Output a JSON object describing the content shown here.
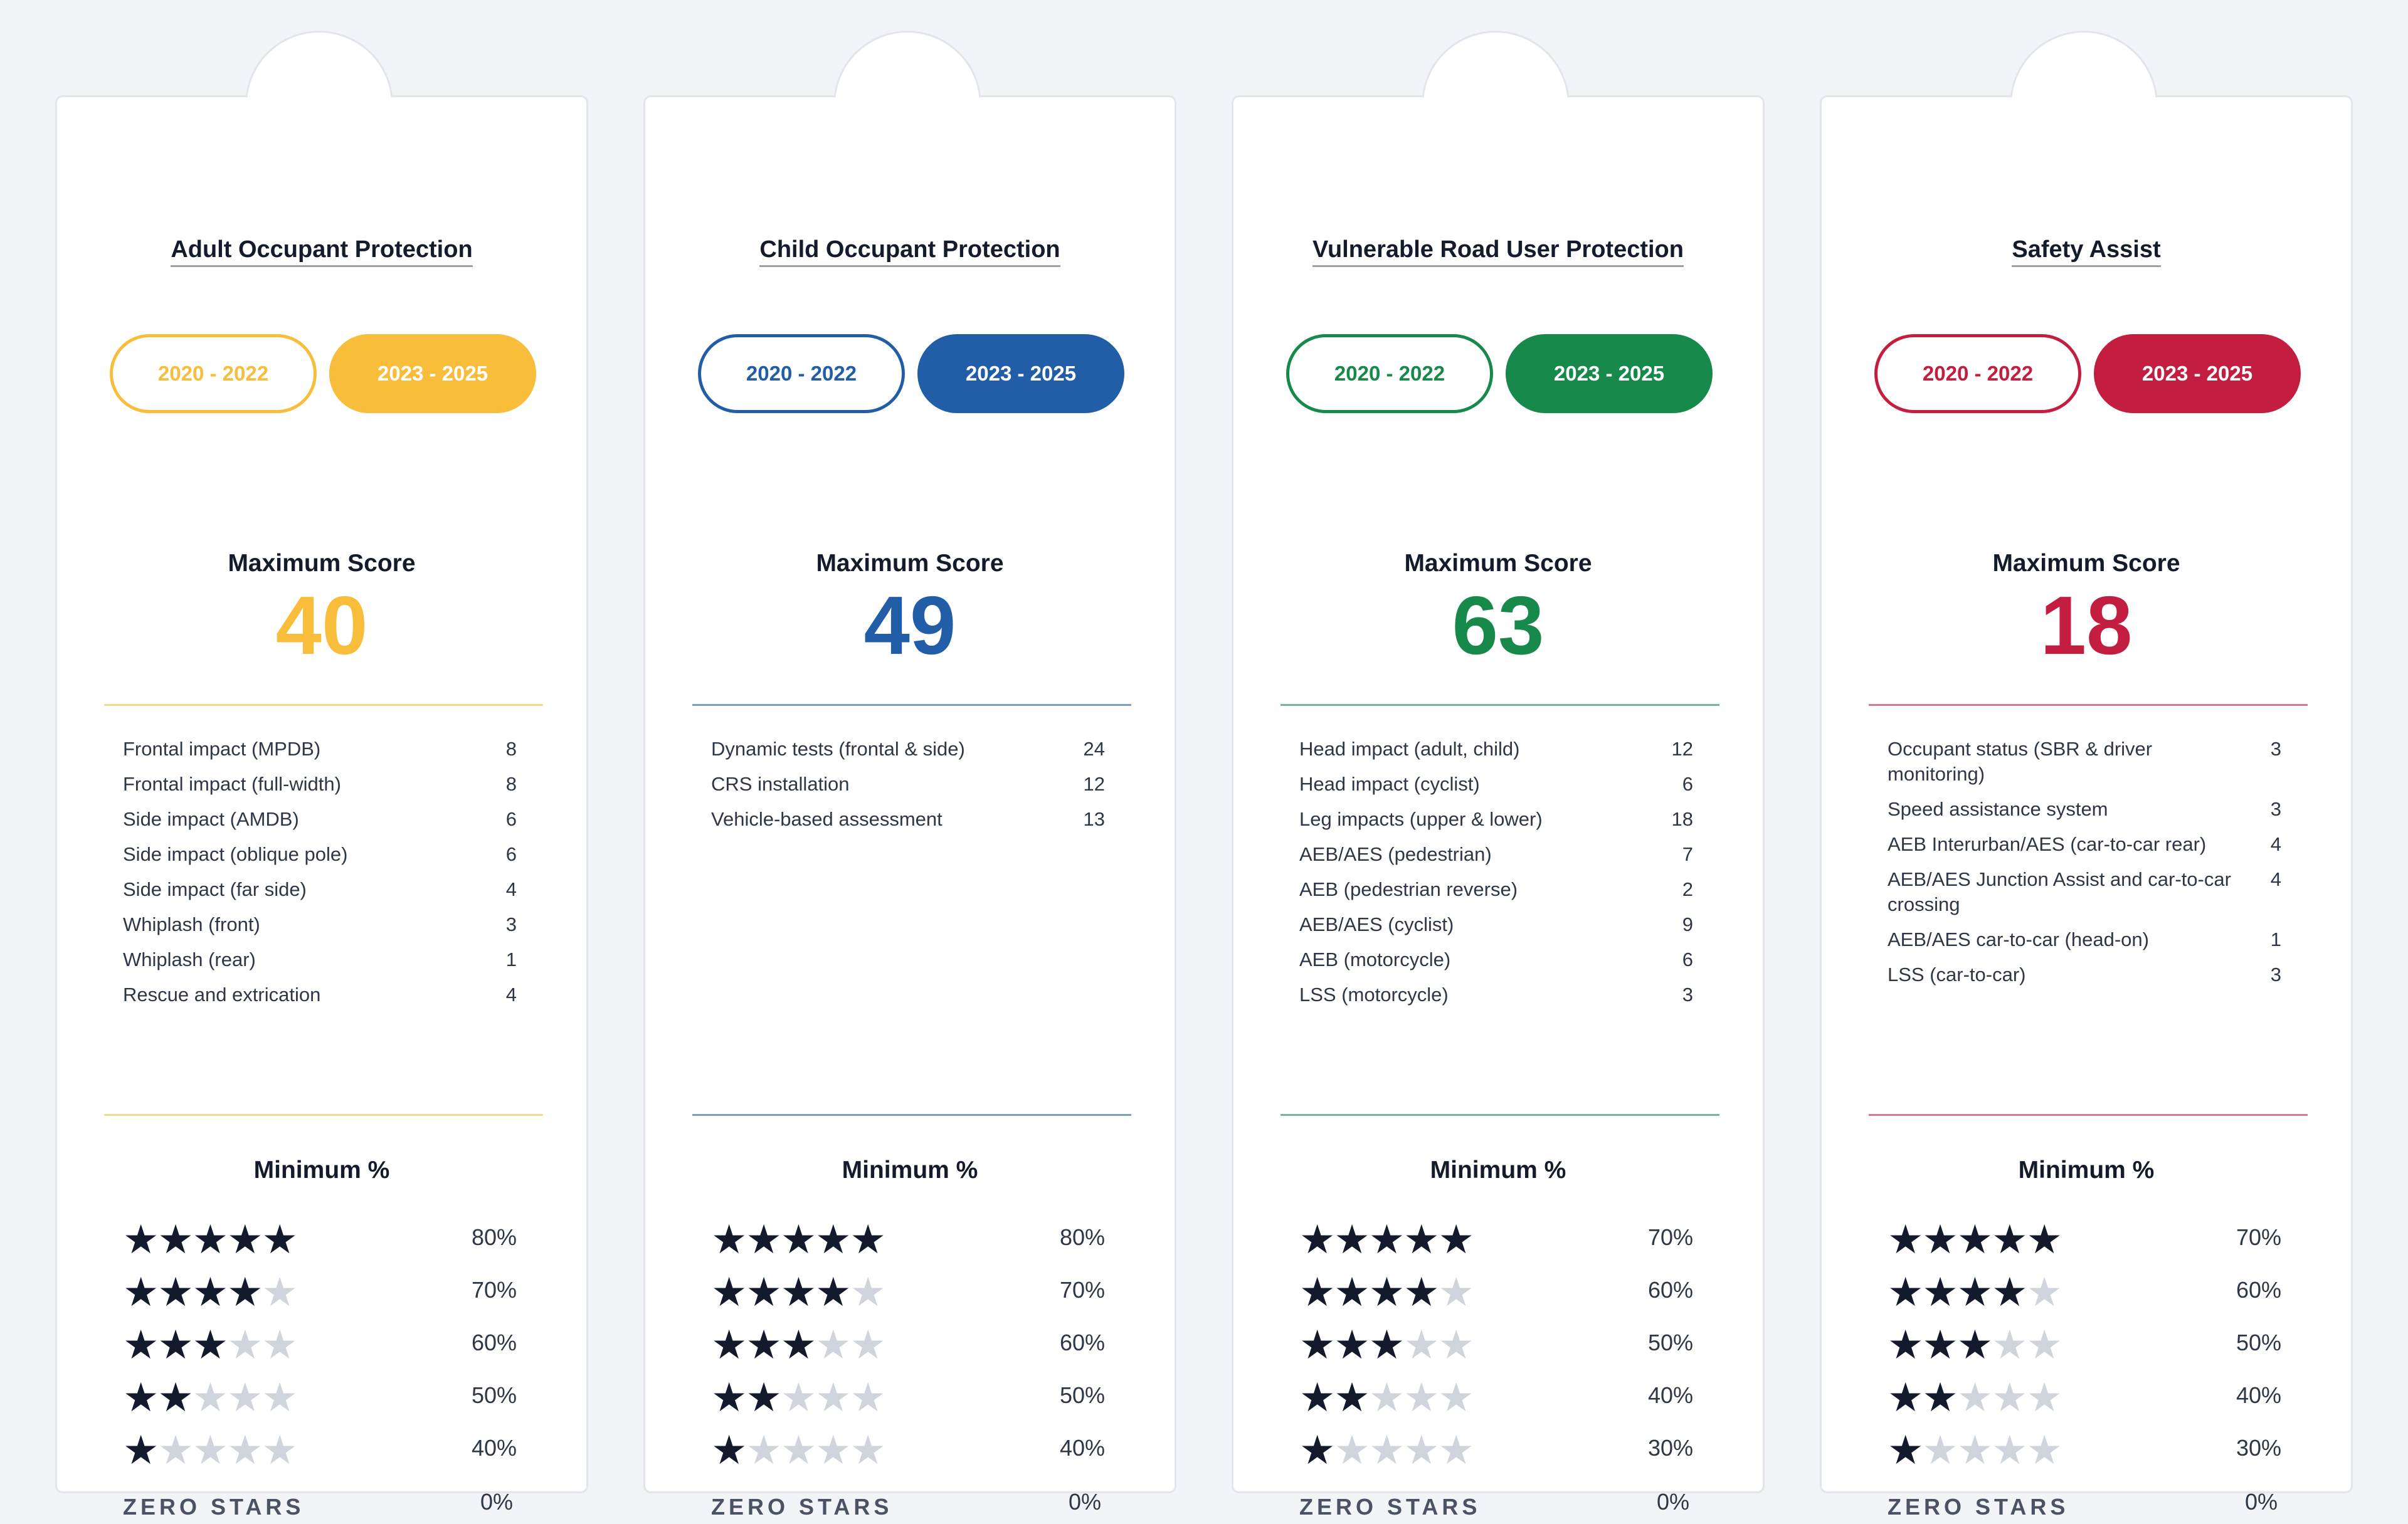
{
  "cards": [
    {
      "title": "Adult Occupant Protection",
      "accent": "#f8bd3a",
      "range_past": "2020 - 2022",
      "range_current": "2023 - 2025",
      "max_label": "Maximum Score",
      "max_score": "40",
      "items": [
        {
          "label": "Frontal impact (MPDB)",
          "value": "8"
        },
        {
          "label": "Frontal impact (full-width)",
          "value": "8"
        },
        {
          "label": "Side impact (AMDB)",
          "value": "6"
        },
        {
          "label": "Side impact (oblique pole)",
          "value": "6"
        },
        {
          "label": "Side impact (far side)",
          "value": "4"
        },
        {
          "label": "Whiplash (front)",
          "value": "3"
        },
        {
          "label": "Whiplash (rear)",
          "value": "1"
        },
        {
          "label": "Rescue and extrication",
          "value": "4"
        }
      ],
      "min_label": "Minimum %",
      "ratings": [
        {
          "stars": 5,
          "pct": "80%"
        },
        {
          "stars": 4,
          "pct": "70%"
        },
        {
          "stars": 3,
          "pct": "60%"
        },
        {
          "stars": 2,
          "pct": "50%"
        },
        {
          "stars": 1,
          "pct": "40%"
        }
      ],
      "zero_label": "ZERO STARS",
      "zero_pct": "0%"
    },
    {
      "title": "Child Occupant Protection",
      "accent": "#225ea8",
      "range_past": "2020 - 2022",
      "range_current": "2023 - 2025",
      "max_label": "Maximum Score",
      "max_score": "49",
      "items": [
        {
          "label": "Dynamic tests (frontal & side)",
          "value": "24"
        },
        {
          "label": "CRS installation",
          "value": "12"
        },
        {
          "label": "Vehicle-based assessment",
          "value": "13"
        }
      ],
      "min_label": "Minimum %",
      "ratings": [
        {
          "stars": 5,
          "pct": "80%"
        },
        {
          "stars": 4,
          "pct": "70%"
        },
        {
          "stars": 3,
          "pct": "60%"
        },
        {
          "stars": 2,
          "pct": "50%"
        },
        {
          "stars": 1,
          "pct": "40%"
        }
      ],
      "zero_label": "ZERO STARS",
      "zero_pct": "0%"
    },
    {
      "title": "Vulnerable Road User Protection",
      "accent": "#17894a",
      "range_past": "2020 - 2022",
      "range_current": "2023 - 2025",
      "max_label": "Maximum Score",
      "max_score": "63",
      "items": [
        {
          "label": "Head impact (adult, child)",
          "value": "12"
        },
        {
          "label": "Head impact (cyclist)",
          "value": "6"
        },
        {
          "label": "Leg impacts (upper & lower)",
          "value": "18"
        },
        {
          "label": "AEB/AES (pedestrian)",
          "value": "7"
        },
        {
          "label": "AEB (pedestrian reverse)",
          "value": "2"
        },
        {
          "label": "AEB/AES (cyclist)",
          "value": "9"
        },
        {
          "label": "AEB (motorcycle)",
          "value": "6"
        },
        {
          "label": "LSS (motorcycle)",
          "value": "3"
        }
      ],
      "min_label": "Minimum %",
      "ratings": [
        {
          "stars": 5,
          "pct": "70%"
        },
        {
          "stars": 4,
          "pct": "60%"
        },
        {
          "stars": 3,
          "pct": "50%"
        },
        {
          "stars": 2,
          "pct": "40%"
        },
        {
          "stars": 1,
          "pct": "30%"
        }
      ],
      "zero_label": "ZERO STARS",
      "zero_pct": "0%"
    },
    {
      "title": "Safety Assist",
      "accent": "#c31d3f",
      "range_past": "2020 - 2022",
      "range_current": "2023 - 2025",
      "max_label": "Maximum Score",
      "max_score": "18",
      "items": [
        {
          "label": "Occupant status (SBR & driver monitoring)",
          "value": "3"
        },
        {
          "label": "Speed assistance system",
          "value": "3"
        },
        {
          "label": "AEB Interurban/AES (car-to-car rear)",
          "value": "4"
        },
        {
          "label": "AEB/AES Junction Assist and car-to-car crossing",
          "value": "4"
        },
        {
          "label": "AEB/AES car-to-car (head-on)",
          "value": "1"
        },
        {
          "label": "LSS (car-to-car)",
          "value": "3"
        }
      ],
      "min_label": "Minimum %",
      "ratings": [
        {
          "stars": 5,
          "pct": "70%"
        },
        {
          "stars": 4,
          "pct": "60%"
        },
        {
          "stars": 3,
          "pct": "50%"
        },
        {
          "stars": 2,
          "pct": "40%"
        },
        {
          "stars": 1,
          "pct": "30%"
        }
      ],
      "zero_label": "ZERO STARS",
      "zero_pct": "0%"
    }
  ]
}
